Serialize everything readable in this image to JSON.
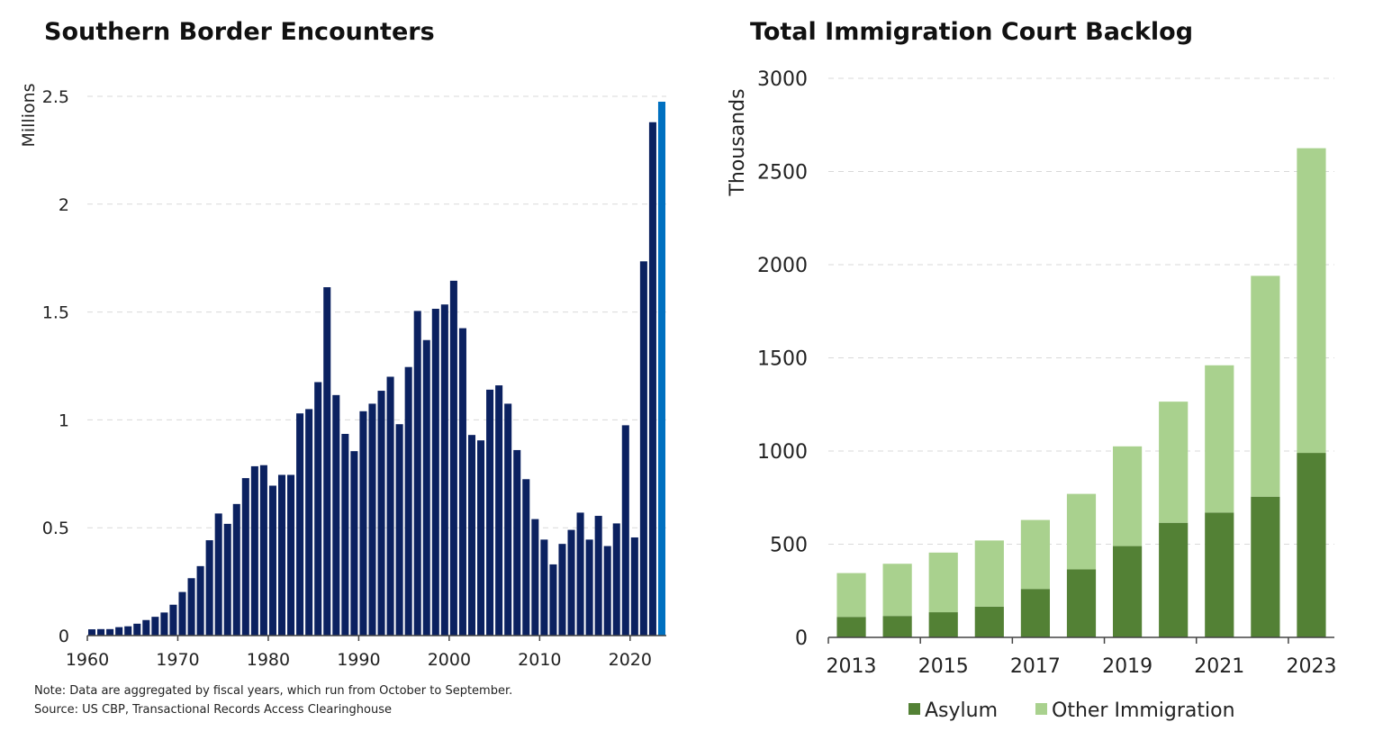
{
  "chart_data": [
    {
      "type": "bar",
      "title": "Southern Border Encounters",
      "ylabel": "Millions",
      "xlabel": "",
      "ylim": [
        0,
        2.5
      ],
      "yticks": [
        "0",
        "0.5",
        "1",
        "1.5",
        "2",
        "2.5"
      ],
      "xticks": [
        "1960",
        "1970",
        "1980",
        "1990",
        "2000",
        "2010",
        "2020"
      ],
      "grid": true,
      "colors": {
        "bar": "#0b2160",
        "highlight": "#0070c0"
      },
      "categories": [
        1960,
        1961,
        1962,
        1963,
        1964,
        1965,
        1966,
        1967,
        1968,
        1969,
        1970,
        1971,
        1972,
        1973,
        1974,
        1975,
        1976,
        1977,
        1978,
        1979,
        1980,
        1981,
        1982,
        1983,
        1984,
        1985,
        1986,
        1987,
        1988,
        1989,
        1990,
        1991,
        1992,
        1993,
        1994,
        1995,
        1996,
        1997,
        1998,
        1999,
        2000,
        2001,
        2002,
        2003,
        2004,
        2005,
        2006,
        2007,
        2008,
        2009,
        2010,
        2011,
        2012,
        2013,
        2014,
        2015,
        2016,
        2017,
        2018,
        2019,
        2020,
        2021,
        2022,
        2023
      ],
      "values": [
        0.029,
        0.03,
        0.03,
        0.039,
        0.043,
        0.055,
        0.072,
        0.087,
        0.107,
        0.143,
        0.202,
        0.266,
        0.322,
        0.442,
        0.566,
        0.518,
        0.61,
        0.73,
        0.785,
        0.79,
        0.695,
        0.745,
        0.745,
        1.03,
        1.05,
        1.175,
        1.615,
        1.115,
        0.935,
        0.855,
        1.04,
        1.075,
        1.135,
        1.2,
        0.98,
        1.245,
        1.505,
        1.37,
        1.515,
        1.535,
        1.645,
        1.425,
        0.93,
        0.905,
        1.14,
        1.16,
        1.075,
        0.86,
        0.725,
        0.54,
        0.445,
        0.33,
        0.425,
        0.49,
        0.57,
        0.445,
        0.555,
        0.415,
        0.52,
        0.975,
        0.455,
        1.735,
        2.38,
        2.475
      ],
      "highlighted_category": 2023,
      "notes": [
        "Note: Data are aggregated by fiscal years, which run from October to September.",
        "Source: US CBP, Transactional Records Access Clearinghouse"
      ]
    },
    {
      "type": "bar",
      "stacked": true,
      "title": "Total Immigration Court Backlog",
      "ylabel": "Thousands",
      "xlabel": "",
      "ylim": [
        0,
        3000
      ],
      "yticks": [
        "0",
        "500",
        "1000",
        "1500",
        "2000",
        "2500",
        "3000"
      ],
      "xticks": [
        "2013",
        "2015",
        "2017",
        "2019",
        "2021",
        "2023"
      ],
      "grid": true,
      "legend": "bottom",
      "categories": [
        2013,
        2014,
        2015,
        2016,
        2017,
        2018,
        2019,
        2020,
        2021,
        2022,
        2023
      ],
      "series": [
        {
          "name": "Asylum",
          "color": "#538135",
          "values": [
            110,
            115,
            135,
            165,
            260,
            365,
            490,
            615,
            670,
            755,
            990
          ]
        },
        {
          "name": "Other Immigration",
          "color": "#a9d18e",
          "values": [
            235,
            280,
            320,
            355,
            370,
            405,
            535,
            650,
            790,
            1185,
            1635
          ]
        }
      ]
    }
  ]
}
